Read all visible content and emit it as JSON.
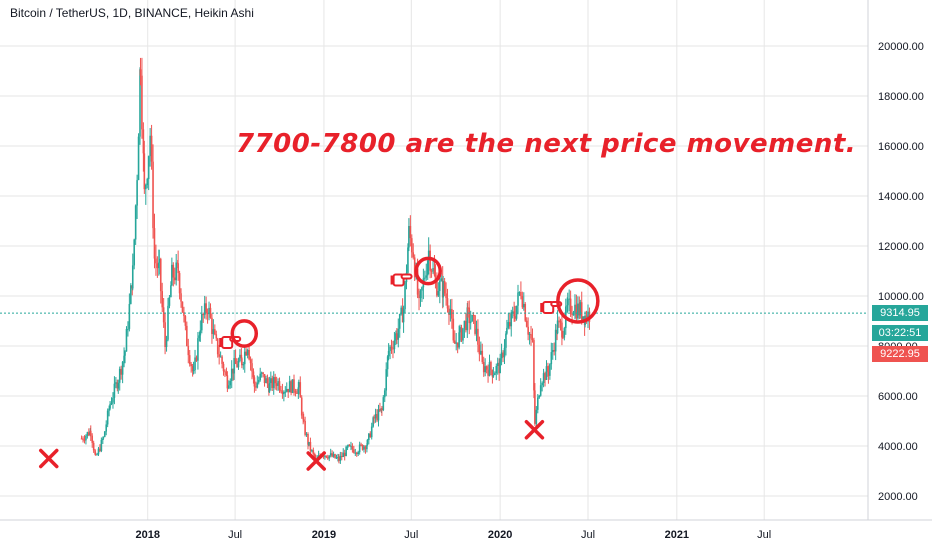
{
  "header": {
    "title": "Bitcoin / TetherUS, 1D, BINANCE, Heikin Ashi"
  },
  "annotation": {
    "text": "7700-7800 are the next price movement."
  },
  "price_tags": {
    "last_price": "9314.95",
    "countdown": "03:22:51",
    "prev_price": "9222.95"
  },
  "colors": {
    "up": "#26a69a",
    "down": "#ef5350",
    "marker": "#e8212a",
    "tag_green": "#26a69a",
    "tag_red": "#ef5350",
    "grid": "#e6e6e6"
  },
  "chart_data": {
    "type": "line",
    "style": "heikin-ashi candles",
    "symbol": "Bitcoin / TetherUS",
    "interval": "1D",
    "exchange": "BINANCE",
    "ylim": [
      0,
      21000
    ],
    "y_ticks": [
      "2000.00",
      "4000.00",
      "6000.00",
      "8000.00",
      "10000.00",
      "12000.00",
      "14000.00",
      "16000.00",
      "18000.00",
      "20000.00"
    ],
    "x_ticks": [
      {
        "label": "2018",
        "date": "2018-01-01"
      },
      {
        "label": "Jul",
        "date": "2018-07-01"
      },
      {
        "label": "2019",
        "date": "2019-01-01"
      },
      {
        "label": "Jul",
        "date": "2019-07-01"
      },
      {
        "label": "2020",
        "date": "2020-01-01"
      },
      {
        "label": "Jul",
        "date": "2020-07-01"
      },
      {
        "label": "2021",
        "date": "2021-01-01"
      },
      {
        "label": "Jul",
        "date": "2021-07-01"
      }
    ],
    "xlim": [
      "2017-03-01",
      "2022-02-01"
    ],
    "series": [
      {
        "x": [
          "2017-08-17",
          "2017-09-05",
          "2017-09-15",
          "2017-10-01",
          "2017-10-15",
          "2017-11-01",
          "2017-11-15",
          "2017-12-01",
          "2017-12-10",
          "2017-12-17",
          "2017-12-25",
          "2018-01-06",
          "2018-01-15",
          "2018-01-25",
          "2018-02-06",
          "2018-02-20",
          "2018-03-05",
          "2018-03-20",
          "2018-04-06",
          "2018-04-20",
          "2018-05-05",
          "2018-05-20",
          "2018-06-01",
          "2018-06-15",
          "2018-06-29",
          "2018-07-15",
          "2018-07-27",
          "2018-08-10",
          "2018-08-25",
          "2018-09-10",
          "2018-09-25",
          "2018-10-10",
          "2018-10-25",
          "2018-11-10",
          "2018-11-20",
          "2018-12-01",
          "2018-12-15",
          "2018-12-28",
          "2019-01-15",
          "2019-02-01",
          "2019-02-20",
          "2019-03-10",
          "2019-04-01",
          "2019-04-15",
          "2019-05-01",
          "2019-05-15",
          "2019-06-01",
          "2019-06-15",
          "2019-06-26",
          "2019-07-05",
          "2019-07-17",
          "2019-08-06",
          "2019-08-20",
          "2019-09-05",
          "2019-09-20",
          "2019-09-26",
          "2019-10-10",
          "2019-10-26",
          "2019-11-10",
          "2019-11-25",
          "2019-12-10",
          "2019-12-18",
          "2020-01-01",
          "2020-01-15",
          "2020-02-01",
          "2020-02-13",
          "2020-02-28",
          "2020-03-08",
          "2020-03-13",
          "2020-03-25",
          "2020-04-10",
          "2020-04-29",
          "2020-05-10",
          "2020-05-20",
          "2020-06-01",
          "2020-06-15",
          "2020-06-25",
          "2020-07-05"
        ],
        "values": [
          4300,
          4600,
          3500,
          4300,
          5700,
          6700,
          7800,
          10900,
          15000,
          19500,
          14000,
          16500,
          11500,
          11000,
          8000,
          10800,
          11000,
          8500,
          6800,
          8900,
          9600,
          8200,
          7500,
          6600,
          7200,
          7400,
          8100,
          6400,
          6800,
          6400,
          6600,
          6300,
          6400,
          6300,
          4800,
          4000,
          3400,
          3700,
          3600,
          3450,
          3900,
          3850,
          4100,
          5100,
          5400,
          7800,
          8500,
          9500,
          12500,
          11800,
          9500,
          11800,
          10500,
          10300,
          9500,
          8000,
          8400,
          9200,
          8800,
          7200,
          7100,
          7000,
          7200,
          8600,
          9400,
          10300,
          8700,
          8000,
          4900,
          6700,
          7000,
          8800,
          8700,
          9500,
          9600,
          9400,
          9200,
          9300
        ]
      }
    ],
    "annotations": [
      {
        "type": "x-mark",
        "date": "2017-06-10",
        "price": 3500
      },
      {
        "type": "x-mark",
        "date": "2018-12-16",
        "price": 3400
      },
      {
        "type": "x-mark",
        "date": "2020-03-12",
        "price": 4650
      },
      {
        "type": "pointing-hand",
        "date": "2018-06-25",
        "price": 8200
      },
      {
        "type": "pointing-hand",
        "date": "2019-06-15",
        "price": 10700
      },
      {
        "type": "pointing-hand",
        "date": "2020-04-20",
        "price": 9600
      },
      {
        "type": "circle",
        "date": "2018-07-20",
        "price": 8500
      },
      {
        "type": "circle",
        "date": "2019-08-05",
        "price": 11000
      },
      {
        "type": "circle",
        "date": "2020-06-10",
        "price": 9800
      }
    ],
    "last_price_line": 9314.95
  }
}
